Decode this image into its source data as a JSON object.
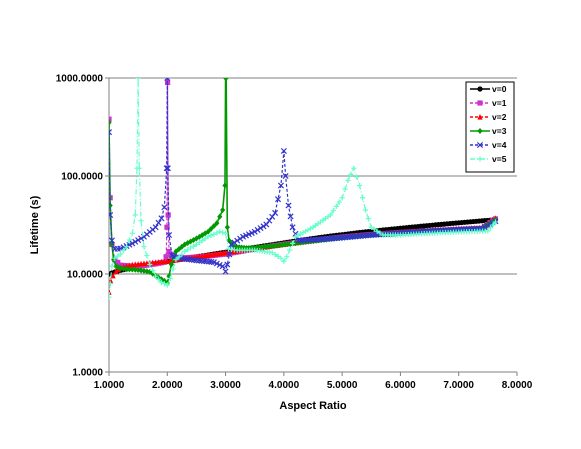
{
  "chart_data": {
    "type": "line",
    "title": "",
    "xlabel": "Aspect Ratio",
    "ylabel": "Lifetime (s)",
    "xlim": [
      1,
      8
    ],
    "ylim": [
      1,
      1000
    ],
    "yscale": "log",
    "x_ticks": [
      "1.0000",
      "2.0000",
      "3.0000",
      "4.0000",
      "5.0000",
      "6.0000",
      "7.0000",
      "8.0000"
    ],
    "y_ticks": [
      "1.0000",
      "10.0000",
      "100.0000",
      "1000.0000"
    ],
    "grid": "horizontal major",
    "legend_position": "top-right",
    "series": [
      {
        "name": "v=0",
        "color": "#000000",
        "marker": "circle",
        "dash": "solid",
        "points": [
          [
            1.0,
            10.0
          ],
          [
            1.1,
            10.5
          ],
          [
            1.2,
            10.9
          ],
          [
            1.4,
            11.6
          ],
          [
            1.6,
            12.2
          ],
          [
            1.8,
            12.8
          ],
          [
            2.0,
            13.4
          ],
          [
            2.2,
            14.0
          ],
          [
            2.4,
            14.6
          ],
          [
            2.6,
            15.3
          ],
          [
            2.8,
            16.0
          ],
          [
            3.0,
            16.7
          ],
          [
            3.2,
            17.5
          ],
          [
            3.4,
            18.3
          ],
          [
            3.6,
            19.1
          ],
          [
            3.8,
            19.9
          ],
          [
            4.0,
            20.8
          ],
          [
            4.2,
            21.7
          ],
          [
            4.4,
            22.6
          ],
          [
            4.6,
            23.5
          ],
          [
            4.8,
            24.4
          ],
          [
            5.0,
            25.2
          ],
          [
            5.2,
            26.1
          ],
          [
            5.4,
            26.9
          ],
          [
            5.6,
            27.7
          ],
          [
            5.8,
            28.5
          ],
          [
            6.0,
            29.3
          ],
          [
            6.2,
            30.1
          ],
          [
            6.4,
            30.9
          ],
          [
            6.6,
            31.7
          ],
          [
            6.8,
            32.5
          ],
          [
            7.0,
            33.3
          ],
          [
            7.2,
            34.1
          ],
          [
            7.4,
            34.9
          ],
          [
            7.63,
            35.7
          ]
        ]
      },
      {
        "name": "v=1",
        "color": "#CC33CC",
        "marker": "square",
        "dash": "dash",
        "points": [
          [
            1.0,
            380
          ],
          [
            1.02,
            60
          ],
          [
            1.05,
            20
          ],
          [
            1.1,
            14
          ],
          [
            1.2,
            12.3
          ],
          [
            1.4,
            12.0
          ],
          [
            1.6,
            12.2
          ],
          [
            1.8,
            12.7
          ],
          [
            1.95,
            13.2
          ],
          [
            1.98,
            15
          ],
          [
            1.995,
            30
          ],
          [
            2.005,
            900
          ],
          [
            2.015,
            40
          ],
          [
            2.03,
            17
          ],
          [
            2.1,
            14.8
          ],
          [
            2.3,
            14.6
          ],
          [
            2.6,
            15.0
          ],
          [
            3.0,
            16.0
          ],
          [
            3.4,
            17.6
          ],
          [
            3.8,
            19.3
          ],
          [
            4.2,
            20.9
          ],
          [
            4.6,
            22.4
          ],
          [
            5.0,
            23.8
          ],
          [
            5.4,
            25.0
          ],
          [
            5.8,
            26.0
          ],
          [
            6.2,
            26.9
          ],
          [
            6.6,
            27.7
          ],
          [
            7.0,
            28.5
          ],
          [
            7.4,
            29.2
          ],
          [
            7.63,
            36.5
          ]
        ]
      },
      {
        "name": "v=2",
        "color": "#FF0000",
        "marker": "triangle",
        "dash": "dash",
        "points": [
          [
            1.0,
            6.5
          ],
          [
            1.03,
            8.5
          ],
          [
            1.07,
            9.6
          ],
          [
            1.12,
            10.6
          ],
          [
            1.2,
            11.6
          ],
          [
            1.4,
            12.4
          ],
          [
            1.6,
            12.8
          ],
          [
            1.8,
            13.1
          ],
          [
            2.0,
            13.5
          ],
          [
            2.2,
            14.1
          ],
          [
            2.6,
            15.2
          ],
          [
            3.0,
            16.5
          ],
          [
            3.4,
            17.9
          ],
          [
            3.8,
            19.4
          ],
          [
            4.2,
            20.9
          ],
          [
            4.6,
            22.4
          ],
          [
            5.0,
            23.8
          ],
          [
            5.4,
            25.1
          ],
          [
            5.8,
            26.2
          ],
          [
            6.2,
            27.2
          ],
          [
            6.6,
            28.1
          ],
          [
            7.0,
            28.9
          ],
          [
            7.4,
            29.6
          ],
          [
            7.63,
            37.0
          ]
        ]
      },
      {
        "name": "v=3",
        "color": "#009900",
        "marker": "diamond",
        "dash": "solid",
        "points": [
          [
            1.0,
            350
          ],
          [
            1.02,
            50
          ],
          [
            1.05,
            20
          ],
          [
            1.08,
            14
          ],
          [
            1.12,
            12
          ],
          [
            1.2,
            11.4
          ],
          [
            1.3,
            11.2
          ],
          [
            1.5,
            11.0
          ],
          [
            1.7,
            10.5
          ],
          [
            1.85,
            9.2
          ],
          [
            1.95,
            8.5
          ],
          [
            2.0,
            8.1
          ],
          [
            2.03,
            9.5
          ],
          [
            2.07,
            12.5
          ],
          [
            2.15,
            17
          ],
          [
            2.3,
            20
          ],
          [
            2.5,
            23
          ],
          [
            2.7,
            27
          ],
          [
            2.85,
            33
          ],
          [
            2.95,
            45
          ],
          [
            2.99,
            80
          ],
          [
            3.0,
            1000
          ],
          [
            3.01,
            1000
          ],
          [
            3.03,
            30
          ],
          [
            3.06,
            22
          ],
          [
            3.15,
            19
          ],
          [
            3.4,
            18.3
          ],
          [
            3.8,
            19.3
          ],
          [
            4.2,
            20.6
          ],
          [
            4.6,
            22.0
          ],
          [
            5.0,
            23.4
          ],
          [
            5.4,
            24.6
          ],
          [
            5.8,
            25.6
          ],
          [
            6.2,
            26.6
          ],
          [
            6.6,
            27.5
          ],
          [
            7.0,
            28.3
          ],
          [
            7.4,
            29.0
          ],
          [
            7.63,
            35.5
          ]
        ]
      },
      {
        "name": "v=4",
        "color": "#3333CC",
        "marker": "x",
        "dash": "dash",
        "points": [
          [
            1.0,
            280
          ],
          [
            1.02,
            40
          ],
          [
            1.05,
            22
          ],
          [
            1.1,
            18
          ],
          [
            1.2,
            18.2
          ],
          [
            1.4,
            20.5
          ],
          [
            1.6,
            24
          ],
          [
            1.8,
            30
          ],
          [
            1.9,
            37
          ],
          [
            1.95,
            48
          ],
          [
            1.99,
            120
          ],
          [
            2.0,
            1000
          ],
          [
            2.01,
            120
          ],
          [
            2.03,
            25
          ],
          [
            2.08,
            15.5
          ],
          [
            2.2,
            14.5
          ],
          [
            2.5,
            13.8
          ],
          [
            2.8,
            13.2
          ],
          [
            2.95,
            12.0
          ],
          [
            3.0,
            10.6
          ],
          [
            3.03,
            12.5
          ],
          [
            3.1,
            20
          ],
          [
            3.3,
            24
          ],
          [
            3.5,
            27
          ],
          [
            3.7,
            32
          ],
          [
            3.85,
            42
          ],
          [
            3.95,
            80
          ],
          [
            4.0,
            180
          ],
          [
            4.03,
            100
          ],
          [
            4.08,
            50
          ],
          [
            4.15,
            30
          ],
          [
            4.25,
            22
          ],
          [
            4.5,
            22.3
          ],
          [
            5.0,
            23.5
          ],
          [
            5.5,
            25.0
          ],
          [
            6.0,
            26.2
          ],
          [
            6.5,
            27.3
          ],
          [
            7.0,
            28.3
          ],
          [
            7.4,
            29.0
          ],
          [
            7.63,
            34.5
          ]
        ]
      },
      {
        "name": "v=5",
        "color": "#66FFCC",
        "marker": "cross",
        "dash": "dash-dot",
        "points": [
          [
            1.0,
            5.8
          ],
          [
            1.02,
            8
          ],
          [
            1.05,
            12
          ],
          [
            1.1,
            14.5
          ],
          [
            1.2,
            16
          ],
          [
            1.3,
            19
          ],
          [
            1.4,
            26
          ],
          [
            1.45,
            40
          ],
          [
            1.48,
            120
          ],
          [
            1.5,
            1000
          ],
          [
            1.52,
            120
          ],
          [
            1.55,
            35
          ],
          [
            1.6,
            19
          ],
          [
            1.7,
            12.5
          ],
          [
            1.8,
            9.5
          ],
          [
            1.9,
            8.2
          ],
          [
            2.0,
            7.7
          ],
          [
            2.05,
            9
          ],
          [
            2.15,
            14
          ],
          [
            2.3,
            17
          ],
          [
            2.5,
            20
          ],
          [
            2.7,
            24
          ],
          [
            2.9,
            27
          ],
          [
            3.0,
            26
          ],
          [
            3.05,
            18
          ],
          [
            3.2,
            17.5
          ],
          [
            3.5,
            17.5
          ],
          [
            3.8,
            16.5
          ],
          [
            3.95,
            14.5
          ],
          [
            4.0,
            13.5
          ],
          [
            4.05,
            15
          ],
          [
            4.2,
            24
          ],
          [
            4.5,
            30
          ],
          [
            4.8,
            40
          ],
          [
            5.0,
            60
          ],
          [
            5.1,
            90
          ],
          [
            5.2,
            120
          ],
          [
            5.3,
            80
          ],
          [
            5.4,
            45
          ],
          [
            5.5,
            30
          ],
          [
            5.7,
            25
          ],
          [
            6.0,
            25.0
          ],
          [
            6.5,
            26.0
          ],
          [
            7.0,
            26.8
          ],
          [
            7.5,
            27.5
          ],
          [
            7.63,
            34.0
          ]
        ]
      }
    ]
  }
}
